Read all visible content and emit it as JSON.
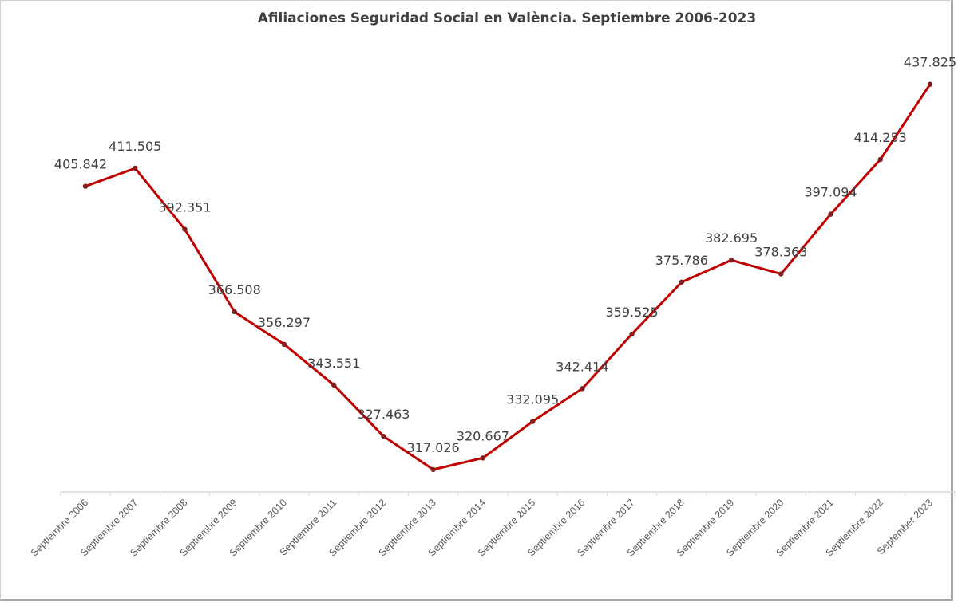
{
  "chart_data": {
    "type": "line",
    "title": "Afiliaciones Seguridad Social en València. Septiembre 2006-2023",
    "xlabel": "",
    "ylabel": "",
    "categories": [
      "Septiembre 2006",
      "Septiembre 2007",
      "Septiembre 2008",
      "Septiembre 2009",
      "Septiembre 2010",
      "Septiembre 2011",
      "Septiembre 2012",
      "Septiembre 2013",
      "Septiembre 2014",
      "Septiembre 2015",
      "Septiembre 2016",
      "Septiembre 2017",
      "Septiembre 2018",
      "Septiembre 2019",
      "Septiembre 2020",
      "Septiembre 2021",
      "Septiembre 2022",
      "September 2023"
    ],
    "series": [
      {
        "values": [
          405.842,
          411.505,
          392.351,
          366.508,
          356.297,
          343.551,
          327.463,
          317.026,
          320.667,
          332.095,
          342.414,
          359.525,
          375.786,
          382.695,
          378.363,
          397.094,
          414.253,
          437.825
        ],
        "labels": [
          "405.842",
          "411.505",
          "392.351",
          "366.508",
          "356.297",
          "343.551",
          "327.463",
          "317.026",
          "320.667",
          "332.095",
          "342.414",
          "359.525",
          "375.786",
          "382.695",
          "378.363",
          "397.094",
          "414.253",
          "437.825"
        ],
        "color": "#c00000"
      }
    ],
    "ylim": [
      310,
      440
    ],
    "y_axis_visible": false,
    "grid": false,
    "legend": "none",
    "x_tick_rotation": -45
  }
}
